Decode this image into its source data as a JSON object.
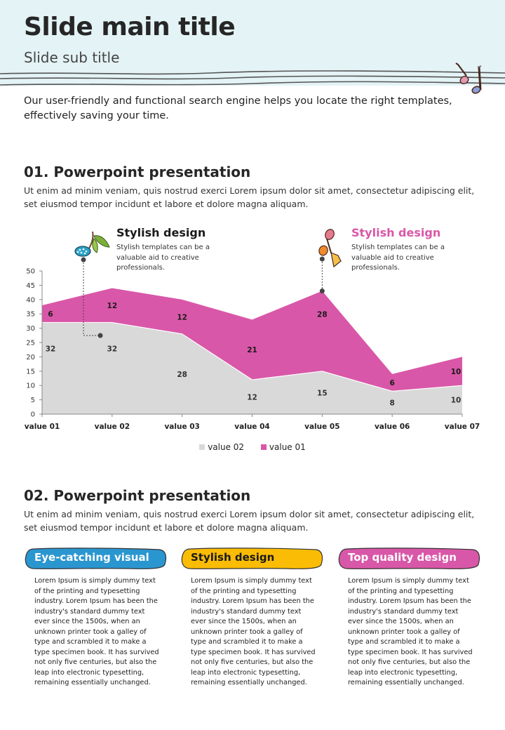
{
  "header": {
    "title": "Slide main title",
    "subtitle": "Slide sub title",
    "background_color": "#e4f3f5"
  },
  "intro": "Our user-friendly and functional search engine helps you locate the right templates, effectively saving your time.",
  "section1": {
    "title": "01. Powerpoint presentation",
    "text": "Ut enim ad minim veniam, quis nostrud exerci  Lorem ipsum dolor sit amet, consectetur adipiscing elit, set eiusmod tempor incidunt et labore et dolore magna aliquam.",
    "callouts": [
      {
        "title": "Stylish design",
        "text": "Stylish templates can be a valuable aid to creative professionals.",
        "title_color": "#1a1a1a",
        "icon": "cherry-note-icon"
      },
      {
        "title": "Stylish design",
        "text": "Stylish templates can be a valuable aid to creative professionals.",
        "title_color": "#d957a8",
        "icon": "double-note-icon"
      }
    ]
  },
  "chart_data": {
    "type": "area",
    "stacked": true,
    "categories": [
      "value 01",
      "value 02",
      "value 03",
      "value 04",
      "value 05",
      "value 06",
      "value 07"
    ],
    "series": [
      {
        "name": "value 02",
        "values": [
          32,
          32,
          28,
          12,
          15,
          8,
          10
        ],
        "color": "#d9d9d9"
      },
      {
        "name": "value 01",
        "values": [
          6,
          12,
          12,
          21,
          28,
          6,
          10
        ],
        "color": "#d957a8"
      }
    ],
    "ylim": [
      0,
      50
    ],
    "yticks": [
      "0",
      "5",
      "10",
      "15",
      "20",
      "25",
      "30",
      "35",
      "40",
      "45",
      "50"
    ],
    "legend_position": "bottom",
    "grid": false
  },
  "section2": {
    "title": "02. Powerpoint presentation",
    "text": "Ut enim ad minim veniam, quis nostrud exerci  Lorem ipsum dolor sit amet, consectetur adipiscing elit, set eiusmod tempor incidunt et labore et dolore magna aliquam.",
    "cards": [
      {
        "label": "Eye-catching visual",
        "color": "#2a96d0",
        "label_color": "#ffffff",
        "text": "Lorem Ipsum is simply dummy text of the printing and typesetting industry. Lorem Ipsum has been the industry's standard dummy text ever since the 1500s, when an unknown printer took a galley of type and scrambled it to make a type specimen book. It has survived not only five centuries, but also the leap into electronic typesetting, remaining essentially unchanged."
      },
      {
        "label": "Stylish design",
        "color": "#fbbc05",
        "label_color": "#1a1a1a",
        "text": "Lorem Ipsum is simply dummy text of the printing and typesetting industry. Lorem Ipsum has been the industry's standard dummy text ever since the 1500s, when an unknown printer took a galley of type and scrambled it to make a type specimen book. It has survived not only five centuries, but also the leap into electronic typesetting, remaining essentially unchanged."
      },
      {
        "label": "Top quality design",
        "color": "#d957a8",
        "label_color": "#ffffff",
        "text": "Lorem Ipsum is simply dummy text of the printing and typesetting industry. Lorem Ipsum has been the industry's standard dummy text ever since the 1500s, when an unknown printer took a galley of type and scrambled it to make a type specimen book. It has survived not only five centuries, but also the leap into electronic typesetting, remaining essentially unchanged."
      }
    ]
  }
}
